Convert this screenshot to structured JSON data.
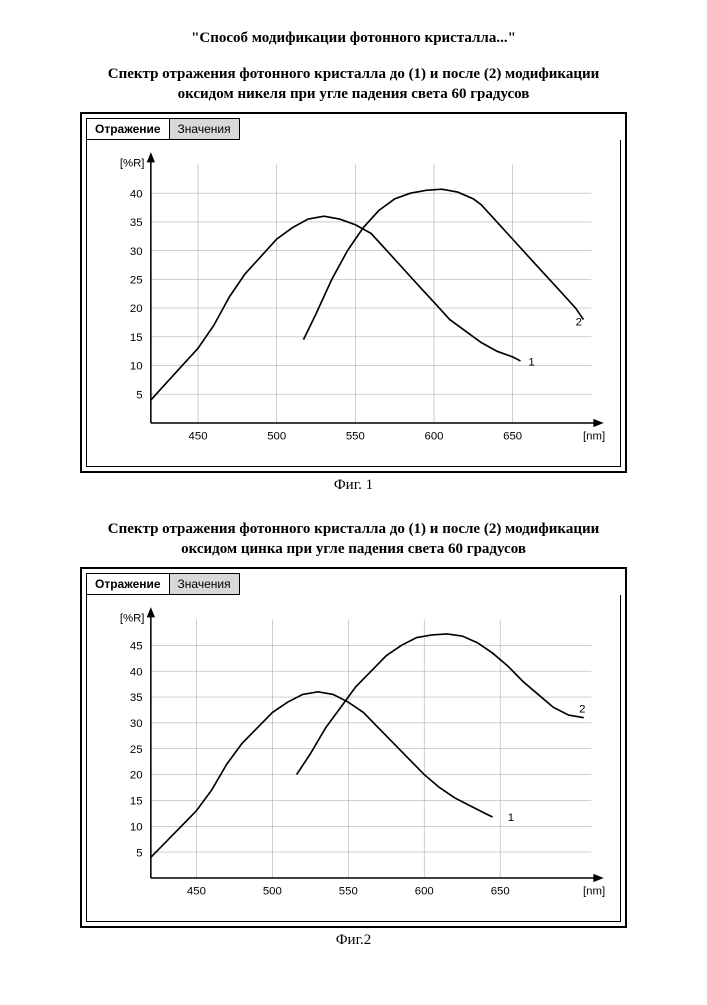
{
  "doc": {
    "title": "\"Способ модификации фотонного кристалла...\""
  },
  "figures": [
    {
      "caption_top": "Спектр отражения фотонного кристалла до (1) и после (2) модификации оксидом никеля при угле падения света 60 градусов",
      "fig_label": "Фиг. 1",
      "tabs": {
        "active": "Отражение",
        "inactive": "Значения"
      },
      "chart": {
        "type": "line",
        "y_axis": {
          "label": "[%R]",
          "ticks": [
            5,
            10,
            15,
            20,
            25,
            30,
            35,
            40
          ],
          "lim": [
            0,
            45
          ],
          "grid_color": "#b0b0b0",
          "axis_color": "#000000"
        },
        "x_axis": {
          "label": "[nm]",
          "ticks": [
            450,
            500,
            550,
            600,
            650
          ],
          "lim": [
            420,
            700
          ],
          "grid_color": "#b0b0b0",
          "axis_color": "#000000"
        },
        "background_color": "#ffffff",
        "line_width": 1.6,
        "font_family": "Arial",
        "tick_fontsize": 11,
        "axis_label_fontsize": 11,
        "series": [
          {
            "name": "1",
            "label_pos": {
              "x": 660,
              "y": 10
            },
            "color": "#000000",
            "points": [
              [
                420,
                4
              ],
              [
                430,
                7
              ],
              [
                440,
                10
              ],
              [
                450,
                13
              ],
              [
                460,
                17
              ],
              [
                470,
                22
              ],
              [
                480,
                26
              ],
              [
                490,
                29
              ],
              [
                500,
                32
              ],
              [
                510,
                34
              ],
              [
                520,
                35.5
              ],
              [
                530,
                36
              ],
              [
                540,
                35.5
              ],
              [
                550,
                34.5
              ],
              [
                560,
                33
              ],
              [
                570,
                30
              ],
              [
                580,
                27
              ],
              [
                590,
                24
              ],
              [
                600,
                21
              ],
              [
                610,
                18
              ],
              [
                620,
                16
              ],
              [
                630,
                14
              ],
              [
                640,
                12.5
              ],
              [
                650,
                11.5
              ],
              [
                655,
                10.8
              ]
            ]
          },
          {
            "name": "2",
            "label_pos": {
              "x": 690,
              "y": 17
            },
            "color": "#000000",
            "points": [
              [
                517,
                14.5
              ],
              [
                525,
                19
              ],
              [
                535,
                25
              ],
              [
                545,
                30
              ],
              [
                555,
                34
              ],
              [
                565,
                37
              ],
              [
                575,
                39
              ],
              [
                585,
                40
              ],
              [
                595,
                40.5
              ],
              [
                605,
                40.7
              ],
              [
                615,
                40.2
              ],
              [
                625,
                39
              ],
              [
                630,
                38
              ],
              [
                640,
                35
              ],
              [
                650,
                32
              ],
              [
                660,
                29
              ],
              [
                670,
                26
              ],
              [
                680,
                23
              ],
              [
                690,
                20
              ],
              [
                695,
                18
              ]
            ]
          }
        ]
      }
    },
    {
      "caption_top": "Спектр отражения фотонного кристалла до (1) и после (2) модификации оксидом цинка при угле падения света 60 градусов",
      "fig_label": "Фиг.2",
      "tabs": {
        "active": "Отражение",
        "inactive": "Значения"
      },
      "chart": {
        "type": "line",
        "y_axis": {
          "label": "[%R]",
          "ticks": [
            5,
            10,
            15,
            20,
            25,
            30,
            35,
            40,
            45
          ],
          "lim": [
            0,
            50
          ],
          "grid_color": "#b0b0b0",
          "axis_color": "#000000"
        },
        "x_axis": {
          "label": "[nm]",
          "ticks": [
            450,
            500,
            550,
            600,
            650
          ],
          "lim": [
            420,
            710
          ],
          "grid_color": "#b0b0b0",
          "axis_color": "#000000"
        },
        "background_color": "#ffffff",
        "line_width": 1.6,
        "font_family": "Arial",
        "tick_fontsize": 11,
        "axis_label_fontsize": 11,
        "series": [
          {
            "name": "1",
            "label_pos": {
              "x": 655,
              "y": 11
            },
            "color": "#000000",
            "points": [
              [
                420,
                4
              ],
              [
                430,
                7
              ],
              [
                440,
                10
              ],
              [
                450,
                13
              ],
              [
                460,
                17
              ],
              [
                470,
                22
              ],
              [
                480,
                26
              ],
              [
                490,
                29
              ],
              [
                500,
                32
              ],
              [
                510,
                34
              ],
              [
                520,
                35.5
              ],
              [
                530,
                36
              ],
              [
                540,
                35.5
              ],
              [
                550,
                34
              ],
              [
                560,
                32
              ],
              [
                570,
                29
              ],
              [
                580,
                26
              ],
              [
                590,
                23
              ],
              [
                600,
                20
              ],
              [
                610,
                17.5
              ],
              [
                620,
                15.5
              ],
              [
                630,
                14
              ],
              [
                640,
                12.5
              ],
              [
                645,
                11.8
              ]
            ]
          },
          {
            "name": "2",
            "label_pos": {
              "x": 702,
              "y": 32
            },
            "color": "#000000",
            "points": [
              [
                516,
                20
              ],
              [
                525,
                24
              ],
              [
                535,
                29
              ],
              [
                545,
                33
              ],
              [
                555,
                37
              ],
              [
                565,
                40
              ],
              [
                575,
                43
              ],
              [
                585,
                45
              ],
              [
                595,
                46.5
              ],
              [
                605,
                47
              ],
              [
                615,
                47.2
              ],
              [
                625,
                46.8
              ],
              [
                635,
                45.5
              ],
              [
                645,
                43.5
              ],
              [
                655,
                41
              ],
              [
                665,
                38
              ],
              [
                675,
                35.5
              ],
              [
                685,
                33
              ],
              [
                695,
                31.5
              ],
              [
                705,
                31
              ]
            ]
          }
        ]
      }
    }
  ]
}
